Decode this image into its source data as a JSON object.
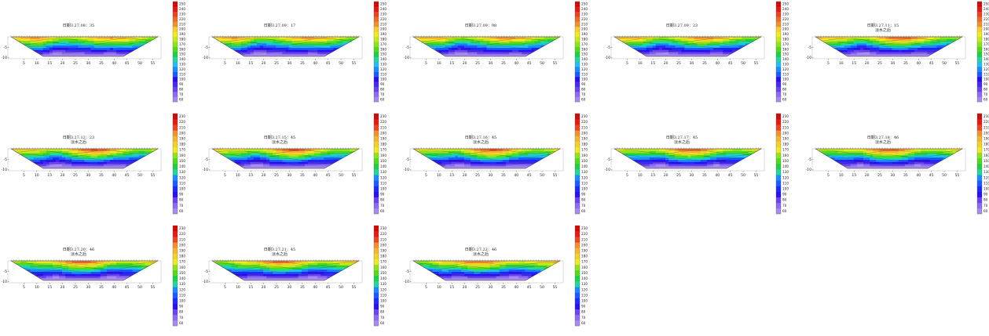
{
  "chart_data": [
    {
      "type": "heatmap",
      "title": "日期3.27.08：35",
      "subtitle": "",
      "x_ticks": [
        5,
        10,
        15,
        20,
        25,
        30,
        35,
        40,
        45,
        50,
        55
      ],
      "y_ticks": [
        -5,
        -10
      ],
      "colorbar_ticks": [
        60,
        70,
        80,
        90,
        100,
        110,
        120,
        130,
        140,
        150,
        160,
        170,
        180,
        190,
        200,
        210,
        220,
        230,
        240,
        250
      ]
    },
    {
      "type": "heatmap",
      "title": "日期3.27.09：17",
      "subtitle": "",
      "x_ticks": [
        5,
        10,
        15,
        20,
        25,
        30,
        35,
        40,
        45,
        50,
        55
      ],
      "y_ticks": [
        -5,
        -10
      ],
      "colorbar_ticks": [
        60,
        70,
        80,
        90,
        100,
        110,
        120,
        130,
        140,
        150,
        160,
        170,
        180,
        190,
        200,
        210,
        220,
        230,
        240,
        250
      ]
    },
    {
      "type": "heatmap",
      "title": "日期3.27.09：08",
      "subtitle": "",
      "x_ticks": [
        5,
        10,
        15,
        20,
        25,
        30,
        35,
        40,
        45,
        50,
        55
      ],
      "y_ticks": [
        -5,
        -10
      ],
      "colorbar_ticks": [
        60,
        70,
        80,
        90,
        100,
        110,
        120,
        130,
        140,
        150,
        160,
        170,
        180,
        190,
        200,
        210,
        220,
        230,
        240,
        250
      ]
    },
    {
      "type": "heatmap",
      "title": "日期3.27.09：23",
      "subtitle": "",
      "x_ticks": [
        5,
        10,
        15,
        20,
        25,
        30,
        35,
        40,
        45,
        50,
        55
      ],
      "y_ticks": [
        -5,
        -10
      ],
      "colorbar_ticks": [
        60,
        70,
        80,
        90,
        100,
        110,
        120,
        130,
        140,
        150,
        160,
        170,
        180,
        190,
        200,
        210,
        220,
        230,
        240,
        250
      ]
    },
    {
      "type": "heatmap",
      "title": "日期3.27.11：15",
      "subtitle": "淡水之后",
      "x_ticks": [
        5,
        10,
        15,
        20,
        25,
        30,
        35,
        40,
        45,
        50,
        55
      ],
      "y_ticks": [
        -5,
        -10
      ],
      "colorbar_ticks": [
        60,
        70,
        80,
        90,
        100,
        110,
        120,
        130,
        140,
        150,
        160,
        170,
        180,
        190,
        200,
        210,
        220,
        230,
        240,
        250
      ]
    },
    {
      "type": "heatmap",
      "title": "日期3.27.12：23",
      "subtitle": "淡水之后",
      "x_ticks": [
        5,
        10,
        15,
        20,
        25,
        30,
        35,
        40,
        45,
        50,
        55
      ],
      "y_ticks": [
        -5,
        -10
      ],
      "colorbar_ticks": [
        60,
        70,
        80,
        90,
        100,
        110,
        120,
        130,
        140,
        150,
        160,
        170,
        180,
        190,
        200,
        210,
        220,
        230
      ]
    },
    {
      "type": "heatmap",
      "title": "日期3.27.15：45",
      "subtitle": "淡水之后",
      "x_ticks": [
        5,
        10,
        15,
        20,
        25,
        30,
        35,
        40,
        45,
        50,
        55
      ],
      "y_ticks": [
        -5,
        -10
      ],
      "colorbar_ticks": [
        60,
        70,
        80,
        90,
        100,
        110,
        120,
        130,
        140,
        150,
        160,
        170,
        180,
        190,
        200,
        210,
        220,
        230
      ]
    },
    {
      "type": "heatmap",
      "title": "日期3.27.16：45",
      "subtitle": "淡水之后",
      "x_ticks": [
        5,
        10,
        15,
        20,
        25,
        30,
        35,
        40,
        45,
        50,
        55
      ],
      "y_ticks": [
        -5,
        -10
      ],
      "colorbar_ticks": [
        60,
        70,
        80,
        90,
        100,
        110,
        120,
        130,
        140,
        150,
        160,
        170,
        180,
        190,
        200,
        210,
        220,
        230
      ]
    },
    {
      "type": "heatmap",
      "title": "日期3.27.17：45",
      "subtitle": "淡水之后",
      "x_ticks": [
        5,
        10,
        15,
        20,
        25,
        30,
        35,
        40,
        45,
        50,
        55
      ],
      "y_ticks": [
        -5,
        -10
      ],
      "colorbar_ticks": [
        60,
        70,
        80,
        90,
        100,
        110,
        120,
        130,
        140,
        150,
        160,
        170,
        180,
        190,
        200,
        210,
        220,
        230
      ]
    },
    {
      "type": "heatmap",
      "title": "日期3.27.18：46",
      "subtitle": "淡水之后",
      "x_ticks": [
        5,
        10,
        15,
        20,
        25,
        30,
        35,
        40,
        45,
        50,
        55
      ],
      "y_ticks": [
        -5,
        -10
      ],
      "colorbar_ticks": [
        60,
        70,
        80,
        90,
        100,
        110,
        120,
        130,
        140,
        150,
        160,
        170,
        180,
        190,
        200,
        210,
        220,
        230
      ]
    },
    {
      "type": "heatmap",
      "title": "日期3.27.20：46",
      "subtitle": "淡水之后",
      "x_ticks": [
        5,
        10,
        15,
        20,
        25,
        30,
        35,
        40,
        45,
        50,
        55
      ],
      "y_ticks": [
        -5,
        -10
      ],
      "colorbar_ticks": [
        60,
        70,
        80,
        90,
        100,
        110,
        120,
        130,
        140,
        150,
        160,
        170,
        180,
        190,
        200,
        210,
        220,
        230
      ]
    },
    {
      "type": "heatmap",
      "title": "日期3.27.21：45",
      "subtitle": "淡水之后",
      "x_ticks": [
        5,
        10,
        15,
        20,
        25,
        30,
        35,
        40,
        45,
        50,
        55
      ],
      "y_ticks": [
        -5,
        -10
      ],
      "colorbar_ticks": [
        60,
        70,
        80,
        90,
        100,
        110,
        120,
        130,
        140,
        150,
        160,
        170,
        180,
        190,
        200,
        210,
        220,
        230
      ]
    },
    {
      "type": "heatmap",
      "title": "日期3.27.22：46",
      "subtitle": "淡水之后",
      "x_ticks": [
        5,
        10,
        15,
        20,
        25,
        30,
        35,
        40,
        45,
        50,
        55
      ],
      "y_ticks": [
        -5,
        -10
      ],
      "colorbar_ticks": [
        60,
        70,
        80,
        90,
        100,
        110,
        120,
        130,
        140,
        150,
        160,
        170,
        180,
        190,
        200,
        210,
        220,
        230
      ]
    }
  ],
  "colors": {
    "colorbar_low_to_high": [
      "#a98aee",
      "#8a6df0",
      "#6a44f2",
      "#4b28f0",
      "#2a10f0",
      "#1e28ff",
      "#1a5cff",
      "#1a8cff",
      "#1fc0f0",
      "#1fd8a0",
      "#20d040",
      "#50dc1c",
      "#8ce41a",
      "#c6ea1c",
      "#f2ea22",
      "#f6d02a",
      "#f6b430",
      "#f49032",
      "#f06a2c",
      "#ee4220",
      "#e81a14",
      "#d00a0a"
    ],
    "frame": "#000000",
    "label": "#222222"
  }
}
